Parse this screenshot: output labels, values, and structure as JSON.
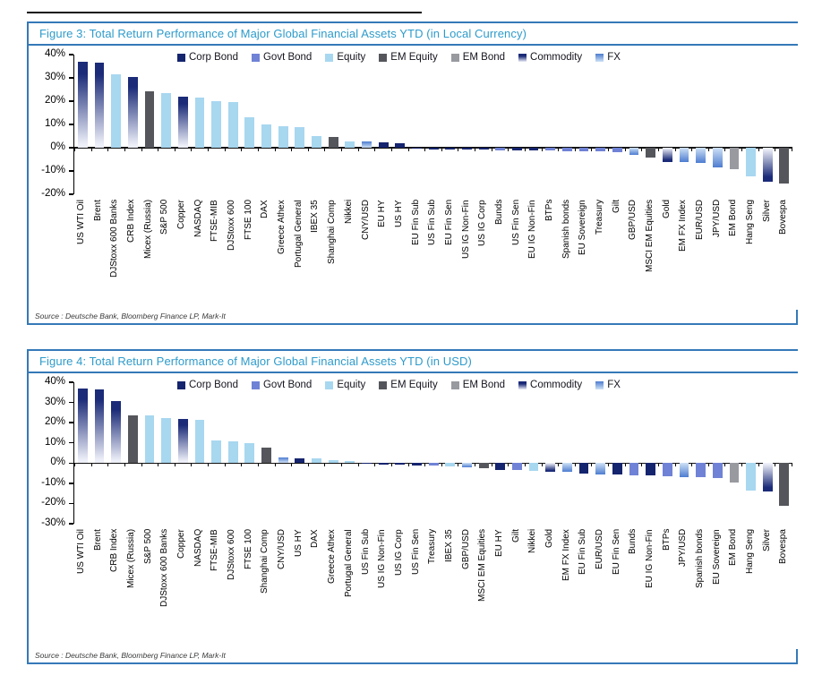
{
  "colors": {
    "corp": "#15246E",
    "govt": "#7082D6",
    "equity": "#A8D7F0",
    "em_equity": "#54565C",
    "em_bond": "#989AA0",
    "commodity_dark": "#1B2B78",
    "commodity_light": "#EDEFF8",
    "fx_dark": "#4D7CD0",
    "fx_light": "#CFE2F6",
    "frame": "#3579B8",
    "title_text": "#2E9BCB"
  },
  "chart_data": [
    {
      "id": "fig3",
      "type": "bar",
      "title": "Figure 3: Total Return Performance of Major Global Financial Assets YTD (in Local Currency)",
      "source": "Source : Deutsche Bank, Bloomberg Finance LP, Mark-It",
      "xlabel": "",
      "ylabel": "",
      "ylim": [
        -20,
        40
      ],
      "ytick_step": 10,
      "ytick_labels": [
        "40%",
        "30%",
        "20%",
        "10%",
        "0%",
        "-10%",
        "-20%"
      ],
      "grid": false,
      "legend_position": "top",
      "legend": [
        {
          "label": "Corp Bond",
          "key": "corp"
        },
        {
          "label": "Govt Bond",
          "key": "govt"
        },
        {
          "label": "Equity",
          "key": "equity"
        },
        {
          "label": "EM Equity",
          "key": "em_equity"
        },
        {
          "label": "EM Bond",
          "key": "em_bond"
        },
        {
          "label": "Commodity",
          "key": "commodity"
        },
        {
          "label": "FX",
          "key": "fx"
        }
      ],
      "categories": [
        "US WTI Oil",
        "Brent",
        "DJStoxx 600 Banks",
        "CRB Index",
        "Micex (Russia)",
        "S&P 500",
        "Copper",
        "NASDAQ",
        "FTSE-MIB",
        "DJStoxx 600",
        "FTSE 100",
        "DAX",
        "Greece Athex",
        "Portugal General",
        "IBEX 35",
        "Shanghai Comp",
        "Nikkei",
        "CNY/USD",
        "EU HY",
        "US HY",
        "EU Fin Sub",
        "US Fin Sub",
        "EU Fin Sen",
        "US IG Non-Fin",
        "US IG Corp",
        "Bunds",
        "US Fin Sen",
        "EU IG Non-Fin",
        "BTPs",
        "Spanish bonds",
        "EU Sovereign",
        "Treasury",
        "Gilt",
        "GBP/USD",
        "MSCI EM Equities",
        "Gold",
        "EM FX Index",
        "EUR/USD",
        "JPY/USD",
        "EM Bond",
        "Hang Seng",
        "Silver",
        "Bovespa"
      ],
      "series": [
        {
          "name": "YTD total return (%)",
          "values": [
            36.8,
            36.5,
            31.5,
            30.5,
            24.3,
            23.4,
            22.0,
            21.5,
            20.0,
            19.5,
            13.0,
            10.0,
            9.3,
            9.0,
            5.0,
            4.6,
            2.8,
            2.7,
            2.4,
            2.0,
            -0.5,
            -0.6,
            -0.7,
            -0.8,
            -0.9,
            -1.0,
            -1.1,
            -1.2,
            -1.3,
            -1.4,
            -1.5,
            -1.6,
            -2.0,
            -2.9,
            -4.3,
            -6.0,
            -6.3,
            -6.5,
            -8.5,
            -9.3,
            -12.3,
            -14.5,
            -15.3
          ]
        }
      ],
      "asset_class": [
        "commodity",
        "commodity",
        "equity",
        "commodity",
        "em_equity",
        "equity",
        "commodity",
        "equity",
        "equity",
        "equity",
        "equity",
        "equity",
        "equity",
        "equity",
        "equity",
        "em_equity",
        "equity",
        "fx",
        "corp",
        "corp",
        "corp",
        "corp",
        "corp",
        "corp",
        "corp",
        "govt",
        "corp",
        "corp",
        "govt",
        "govt",
        "govt",
        "govt",
        "govt",
        "fx",
        "em_equity",
        "commodity",
        "fx",
        "fx",
        "fx",
        "em_bond",
        "equity",
        "commodity",
        "em_equity"
      ]
    },
    {
      "id": "fig4",
      "type": "bar",
      "title": "Figure 4: Total Return Performance of Major Global Financial Assets YTD (in USD)",
      "source": "Source : Deutsche Bank, Bloomberg Finance LP, Mark-It",
      "xlabel": "",
      "ylabel": "",
      "ylim": [
        -30,
        40
      ],
      "ytick_step": 10,
      "ytick_labels": [
        "40%",
        "30%",
        "20%",
        "10%",
        "0%",
        "-10%",
        "-20%",
        "-30%"
      ],
      "grid": false,
      "legend_position": "top",
      "legend": [
        {
          "label": "Corp Bond",
          "key": "corp"
        },
        {
          "label": "Govt Bond",
          "key": "govt"
        },
        {
          "label": "Equity",
          "key": "equity"
        },
        {
          "label": "EM Equity",
          "key": "em_equity"
        },
        {
          "label": "EM Bond",
          "key": "em_bond"
        },
        {
          "label": "Commodity",
          "key": "commodity"
        },
        {
          "label": "FX",
          "key": "fx"
        }
      ],
      "categories": [
        "US WTI Oil",
        "Brent",
        "CRB Index",
        "Micex (Russia)",
        "S&P 500",
        "DJStoxx 600 Banks",
        "Copper",
        "NASDAQ",
        "FTSE-MIB",
        "DJStoxx 600",
        "FTSE 100",
        "Shanghai Comp",
        "CNY/USD",
        "US HY",
        "DAX",
        "Greece Athex",
        "Portugal General",
        "US Fin Sub",
        "US IG Non-Fin",
        "US IG Corp",
        "US Fin Sen",
        "Treasury",
        "IBEX 35",
        "GBP/USD",
        "MSCI EM Equities",
        "EU HY",
        "Gilt",
        "Nikkei",
        "Gold",
        "EM FX Index",
        "EU Fin Sub",
        "EUR/USD",
        "EU Fin Sen",
        "Bunds",
        "EU IG Non-Fin",
        "BTPs",
        "JPY/USD",
        "Spanish bonds",
        "EU Sovereign",
        "EM Bond",
        "Hang Seng",
        "Silver",
        "Bovespa"
      ],
      "series": [
        {
          "name": "YTD total return (%)",
          "values": [
            36.8,
            36.5,
            30.8,
            23.8,
            23.4,
            22.4,
            21.9,
            21.5,
            11.4,
            10.9,
            10.0,
            7.8,
            2.6,
            2.3,
            2.2,
            1.5,
            1.2,
            -0.5,
            -0.7,
            -0.8,
            -1.0,
            -1.4,
            -1.6,
            -2.0,
            -2.7,
            -3.4,
            -3.6,
            -4.0,
            -4.3,
            -4.5,
            -5.3,
            -5.5,
            -5.8,
            -6.0,
            -6.2,
            -6.4,
            -6.8,
            -7.0,
            -7.2,
            -9.5,
            -13.5,
            -14.0,
            -21.0
          ]
        }
      ],
      "asset_class": [
        "commodity",
        "commodity",
        "commodity",
        "em_equity",
        "equity",
        "equity",
        "commodity",
        "equity",
        "equity",
        "equity",
        "equity",
        "em_equity",
        "fx",
        "corp",
        "equity",
        "equity",
        "equity",
        "corp",
        "corp",
        "corp",
        "corp",
        "govt",
        "equity",
        "fx",
        "em_equity",
        "corp",
        "govt",
        "equity",
        "commodity",
        "fx",
        "corp",
        "fx",
        "corp",
        "govt",
        "corp",
        "govt",
        "fx",
        "govt",
        "govt",
        "em_bond",
        "equity",
        "commodity",
        "em_equity"
      ]
    }
  ]
}
